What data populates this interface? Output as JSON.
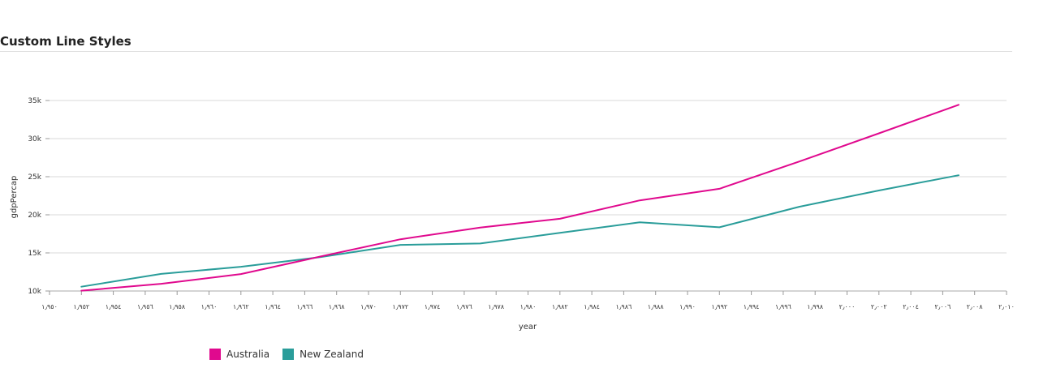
{
  "page_title": "Custom Line Styles",
  "chart_data": {
    "type": "line",
    "xlabel": "year",
    "ylabel": "gdpPercap",
    "xlim": [
      1950,
      2010
    ],
    "ylim": [
      10000,
      35000
    ],
    "x_ticks": [
      1950,
      1952,
      1954,
      1956,
      1958,
      1960,
      1962,
      1964,
      1966,
      1968,
      1970,
      1972,
      1974,
      1976,
      1978,
      1980,
      1982,
      1984,
      1986,
      1988,
      1990,
      1992,
      1994,
      1996,
      1998,
      2000,
      2002,
      2004,
      2006,
      2008,
      2010
    ],
    "x_tick_labels": [
      "١٫٩٥٠",
      "١٫٩٥٢",
      "١٫٩٥٤",
      "١٫٩٥٦",
      "١٫٩٥٨",
      "١٫٩٦٠",
      "١٫٩٦٢",
      "١٫٩٦٤",
      "١٫٩٦٦",
      "١٫٩٦٨",
      "١٫٩٧٠",
      "١٫٩٧٢",
      "١٫٩٧٤",
      "١٫٩٧٦",
      "١٫٩٧٨",
      "١٫٩٨٠",
      "١٫٩٨٢",
      "١٫٩٨٤",
      "١٫٩٨٦",
      "١٫٩٨٨",
      "١٫٩٩٠",
      "١٫٩٩٢",
      "١٫٩٩٤",
      "١٫٩٩٦",
      "١٫٩٩٨",
      "٢٫٠٠٠",
      "٢٫٠٠٢",
      "٢٫٠٠٤",
      "٢٫٠٠٦",
      "٢٫٠٠٨",
      "٢٫٠١٠"
    ],
    "y_ticks": [
      10000,
      15000,
      20000,
      25000,
      30000,
      35000
    ],
    "y_tick_labels": [
      "10k",
      "15k",
      "20k",
      "25k",
      "30k",
      "35k"
    ],
    "grid": true,
    "legend_placement": "bottom-left",
    "x": [
      1952,
      1957,
      1962,
      1967,
      1972,
      1977,
      1982,
      1987,
      1992,
      1997,
      2002,
      2007
    ],
    "series": [
      {
        "name": "Australia",
        "color": "#e0098e",
        "values": [
          10040,
          10950,
          12220,
          14530,
          16790,
          18330,
          19480,
          21890,
          23420,
          26990,
          30690,
          34440
        ]
      },
      {
        "name": "New Zealand",
        "color": "#2a9d9a",
        "values": [
          10560,
          12250,
          13180,
          14460,
          16050,
          16230,
          17630,
          19010,
          18360,
          21050,
          23190,
          25190
        ]
      }
    ]
  }
}
